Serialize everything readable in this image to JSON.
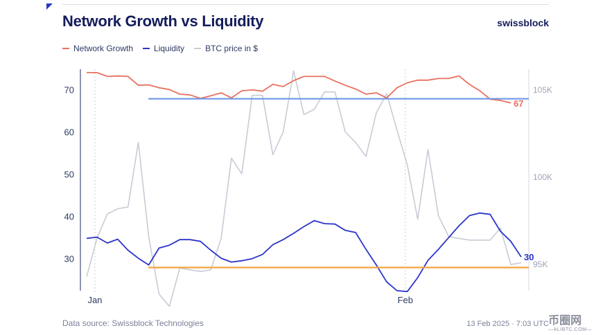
{
  "header": {
    "title": "Network Growth vs Liquidity",
    "brand": "swissblock"
  },
  "legend": [
    {
      "label": "Network Growth",
      "color": "#e8705f"
    },
    {
      "label": "Liquidity",
      "color": "#2b34c9"
    },
    {
      "label": "BTC price in $",
      "color": "#c9cbd6"
    }
  ],
  "footer": {
    "source": "Data source: Swissblock Technologies",
    "timestamp": "13 Feb 2025 · 7:03 UTC"
  },
  "watermark": {
    "main": "币圈网",
    "sub": "—ALIBTC.COM—"
  },
  "chart_data": {
    "type": "line",
    "title": "Network Growth vs Liquidity",
    "x_labels": [
      "Jan",
      "Feb"
    ],
    "x_label_index": [
      1,
      31
    ],
    "y_left": {
      "ticks": [
        30,
        40,
        50,
        60,
        70
      ],
      "range": [
        22.5,
        75
      ]
    },
    "y_right": {
      "ticks": [
        "95K",
        "100K",
        "105K"
      ],
      "tick_values": [
        95000,
        100000,
        105000
      ],
      "range": [
        93500,
        106200
      ]
    },
    "series": [
      {
        "name": "Network Growth",
        "axis": "left",
        "color": "#e8705f",
        "end_label": "67",
        "values": [
          74.2,
          74.2,
          73.3,
          73.4,
          73.3,
          71.2,
          71.3,
          70.6,
          70.2,
          69.1,
          68.9,
          68.1,
          68.7,
          69.4,
          68.2,
          69.9,
          70.1,
          69.8,
          71.4,
          70.9,
          72.3,
          73.3,
          73.3,
          73.3,
          72.2,
          71.2,
          70.3,
          69.1,
          69.4,
          68.2,
          70.6,
          71.8,
          72.4,
          72.4,
          72.8,
          72.8,
          73.4,
          71.4,
          69.9,
          67.9,
          67.6,
          67.0
        ]
      },
      {
        "name": "Liquidity",
        "axis": "left",
        "color": "#2b34c9",
        "end_label": "30",
        "values": [
          34.9,
          35.2,
          33.8,
          34.7,
          32.1,
          30.2,
          28.6,
          32.6,
          33.3,
          34.6,
          34.6,
          34.2,
          32.1,
          30.2,
          29.3,
          29.6,
          30.1,
          31.1,
          33.4,
          34.6,
          36.1,
          37.7,
          39.1,
          38.4,
          38.3,
          36.8,
          36.3,
          32.3,
          28.6,
          24.6,
          22.5,
          22.3,
          25.6,
          29.7,
          32.3,
          35.1,
          37.9,
          40.3,
          40.9,
          40.6,
          36.6,
          34.2,
          30.5
        ]
      },
      {
        "name": "BTC price in $",
        "axis": "right",
        "color": "#c9cbd6",
        "values": [
          94300,
          96500,
          97900,
          98200,
          98300,
          102000,
          96600,
          93300,
          92600,
          94800,
          94700,
          94600,
          94700,
          96500,
          101100,
          100200,
          104700,
          104700,
          101300,
          102600,
          106100,
          103600,
          103900,
          104900,
          104900,
          102600,
          102000,
          101200,
          103700,
          104800,
          102700,
          100700,
          97600,
          101600,
          97800,
          96600,
          96500,
          96400,
          96400,
          96400,
          97100,
          95000,
          95100
        ]
      }
    ],
    "reference_lines": [
      {
        "axis": "left",
        "value": 68,
        "color": "#6f97e8"
      },
      {
        "axis": "left",
        "value": 28,
        "color": "#f2a53c"
      }
    ]
  }
}
